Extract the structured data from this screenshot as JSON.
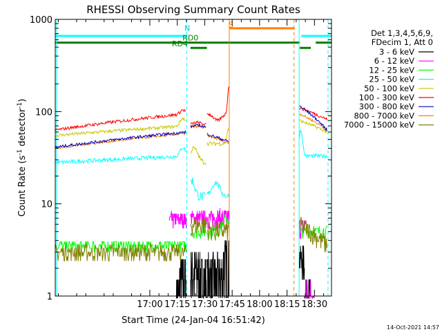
{
  "chart_data": {
    "type": "line",
    "title": "RHESSI Observing Summary Count Rates",
    "xlabel": "Start Time (24-Jan-04 16:51:42)",
    "ylabel_main": "Count Rate (s",
    "ylabel_sup1": "-1",
    "ylabel_mid": " detector",
    "ylabel_sup2": "-1",
    "ylabel_end": ")",
    "yscale": "log",
    "xlim": [
      -51.7,
      99.3
    ],
    "ylim": [
      1,
      1000
    ],
    "xticks": [
      {
        "v": 0,
        "label": "17:00"
      },
      {
        "v": 15,
        "label": "17:15"
      },
      {
        "v": 30,
        "label": "17:30"
      },
      {
        "v": 45,
        "label": "17:45"
      },
      {
        "v": 60,
        "label": "18:00"
      },
      {
        "v": 75,
        "label": "18:15"
      },
      {
        "v": 90,
        "label": "18:30"
      }
    ],
    "x_minor": 5,
    "yticks": [
      {
        "v": 1,
        "label": "1"
      },
      {
        "v": 10,
        "label": "10"
      },
      {
        "v": 100,
        "label": "100"
      },
      {
        "v": 1000,
        "label": "1000"
      }
    ],
    "legend_header": [
      "Det 1,3,4,5,6,9,",
      "FDecim 1, Att 0"
    ],
    "legend_placement": "right",
    "series": [
      {
        "name": "3 - 6 keV",
        "color": "#000000"
      },
      {
        "name": "6 - 12 keV",
        "color": "#ff00ff"
      },
      {
        "name": "12 - 25 keV",
        "color": "#00ff00"
      },
      {
        "name": "25 - 50 keV",
        "color": "#00ffff"
      },
      {
        "name": "50 - 100 keV",
        "color": "#c8c800"
      },
      {
        "name": "100 - 300 keV",
        "color": "#ff0000"
      },
      {
        "name": "300 - 800 keV",
        "color": "#0000c8"
      },
      {
        "name": "800 - 7000 keV",
        "color": "#ff8000"
      },
      {
        "name": "7000 - 15000 keV",
        "color": "#808000"
      }
    ],
    "annotations": [
      {
        "label": "N",
        "x": 20.4,
        "y": 750,
        "color": "#00c8c8"
      },
      {
        "label": "RD0",
        "x": 22.2,
        "y": 590,
        "color": "#008000"
      },
      {
        "label": "RD4",
        "x": 16.4,
        "y": 510,
        "color": "#008000"
      },
      {
        "label": "S",
        "x": 44.4,
        "y": 820,
        "color": "#ff8000"
      }
    ],
    "footer_date": "14-Oct-2021 14:57"
  }
}
